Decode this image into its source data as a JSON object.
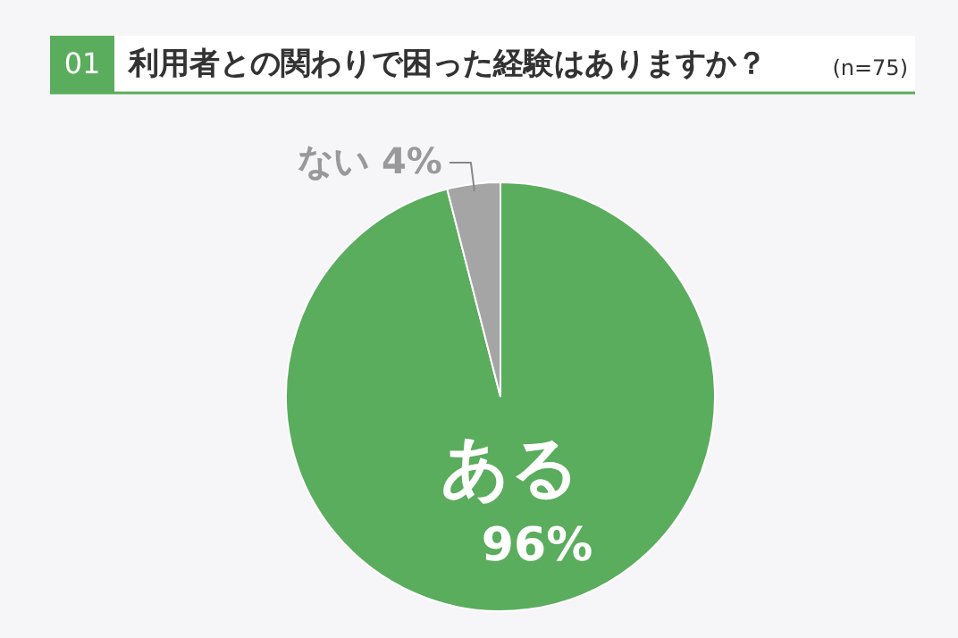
{
  "chart_data": {
    "type": "pie",
    "title": "利用者との関わりで困った経験はありますか？",
    "annotations": [
      "01",
      "(n=75)"
    ],
    "categories": [
      "ある",
      "ない"
    ],
    "values": [
      96,
      4
    ],
    "colors": [
      "#5aad5c",
      "#a5a5a5"
    ],
    "value_labels": [
      "96%",
      "4%"
    ]
  }
}
